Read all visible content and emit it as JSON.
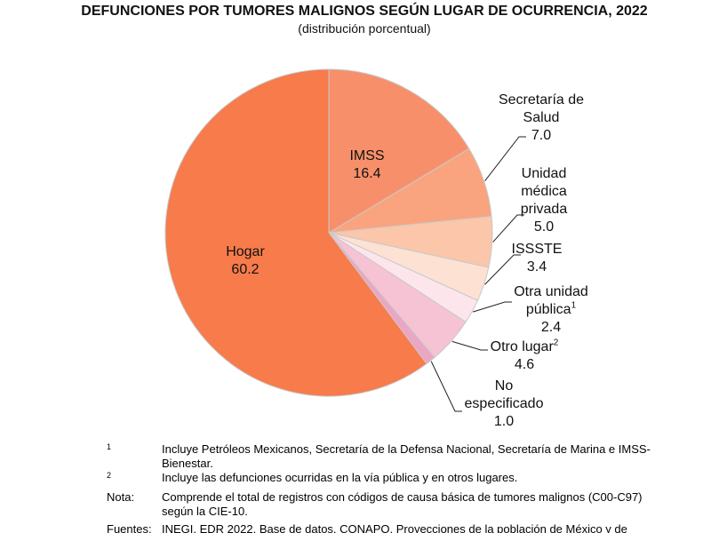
{
  "chart_data": {
    "type": "pie",
    "title": "DEFUNCIONES POR TUMORES MALIGNOS SEGÚN LUGAR DE OCURRENCIA, 2022",
    "subtitle": "(distribución porcentual)",
    "categories": [
      "IMSS",
      "Secretaría de Salud",
      "Unidad médica privada",
      "ISSSTE",
      "Otra unidad pública",
      "Otro lugar",
      "No especificado",
      "Hogar"
    ],
    "notes": [
      null,
      null,
      null,
      null,
      "1",
      "2",
      null,
      null
    ],
    "values": [
      16.4,
      7.0,
      5.0,
      3.4,
      2.4,
      4.6,
      1.0,
      60.2
    ],
    "value_labels": [
      "16.4",
      "7.0",
      "5.0",
      "3.4",
      "2.4",
      "4.6",
      "1.0",
      "60.2"
    ],
    "colors": [
      "#f7906a",
      "#f9a47f",
      "#fbc6aa",
      "#fde1d3",
      "#fce6ec",
      "#f5c3d4",
      "#eaa6c3",
      "#f77b4b"
    ]
  },
  "footnotes": [
    {
      "marker": "1",
      "text": "Incluye Petróleos Mexicanos, Secretaría de la Defensa Nacional, Secretaría de Marina e IMSS-Bienestar."
    },
    {
      "marker": "2",
      "text": "Incluye las defunciones ocurridas en la vía pública y en otros lugares."
    },
    {
      "marker": "Nota:",
      "text": "Comprende el total de registros con códigos de causa básica de tumores malignos (C00-C97) según la CIE-10."
    },
    {
      "marker": "Fuentes:",
      "text": "INEGI. EDR 2022. Base de datos. CONAPO. Proyecciones de la población de México y de"
    }
  ]
}
